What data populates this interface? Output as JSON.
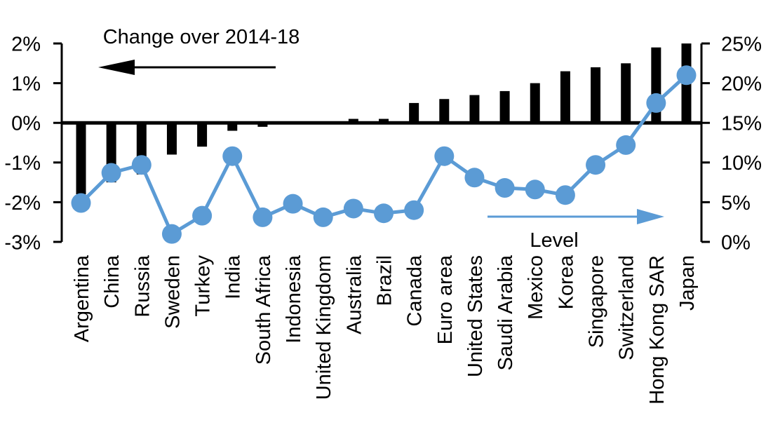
{
  "chart_data": {
    "type": "combo",
    "categories": [
      "Argentina",
      "China",
      "Russia",
      "Sweden",
      "Turkey",
      "India",
      "South Africa",
      "Indonesia",
      "United Kingdom",
      "Australia",
      "Brazil",
      "Canada",
      "Euro area",
      "United States",
      "Saudi Arabia",
      "Mexico",
      "Korea",
      "Singapore",
      "Switzerland",
      "Hong Kong SAR",
      "Japan"
    ],
    "series": [
      {
        "name": "Change over 2014-18",
        "type": "bar",
        "axis": "left",
        "color": "#000000",
        "values": [
          -1.8,
          -1.5,
          -1.3,
          -0.8,
          -0.6,
          -0.2,
          -0.1,
          0,
          0,
          0.1,
          0.1,
          0.5,
          0.6,
          0.7,
          0.8,
          1.0,
          1.3,
          1.4,
          1.5,
          1.9,
          2.0
        ]
      },
      {
        "name": "Level",
        "type": "line",
        "axis": "right",
        "color": "#5B9BD5",
        "values": [
          4.9,
          8.7,
          9.7,
          1.0,
          3.3,
          10.8,
          3.1,
          4.8,
          3.1,
          4.2,
          3.6,
          4.0,
          10.8,
          8.1,
          6.8,
          6.6,
          5.9,
          9.7,
          12.2,
          17.5,
          21.0
        ]
      }
    ],
    "left_axis": {
      "ticks": [
        "2%",
        "1%",
        "0%",
        "-1%",
        "-2%",
        "-3%"
      ],
      "tick_values": [
        2,
        1,
        0,
        -1,
        -2,
        -3
      ],
      "range": [
        -3,
        2
      ]
    },
    "right_axis": {
      "ticks": [
        "25%",
        "20%",
        "15%",
        "10%",
        "5%",
        "0%"
      ],
      "tick_values": [
        25,
        20,
        15,
        10,
        5,
        0
      ],
      "range": [
        0,
        25
      ]
    },
    "annotations": {
      "bar_series_label": "Change over 2014-18",
      "line_series_label": "Level",
      "bar_arrow_direction": "left",
      "line_arrow_direction": "right"
    },
    "grid": false,
    "legend_position": "in-plot-annotations",
    "colors": {
      "bar": "#000000",
      "line": "#5B9BD5",
      "background": "#ffffff"
    }
  }
}
